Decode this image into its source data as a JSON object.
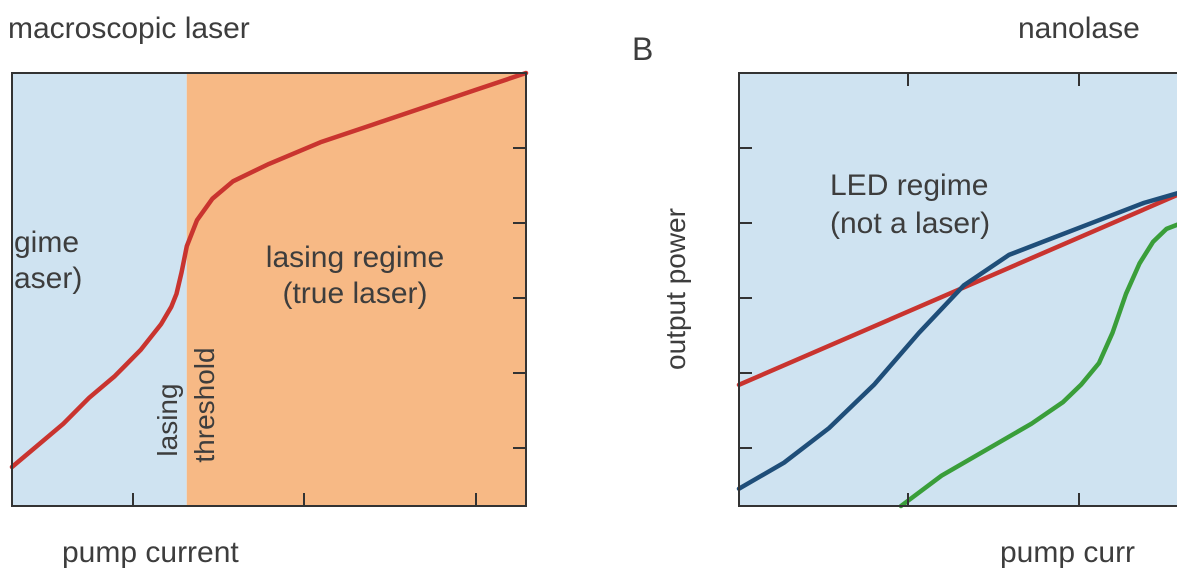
{
  "chart_data": [
    {
      "type": "line",
      "title": "macroscopic laser",
      "xlabel": "pump current",
      "ylabel": "",
      "grid": false,
      "xlim": [
        0,
        1
      ],
      "ylim": [
        0,
        1
      ],
      "regions": [
        {
          "name": "led-region",
          "label_lines": [
            "gime",
            "aser)"
          ],
          "x_range": [
            0,
            0.34
          ],
          "color": "#cfe3f1"
        },
        {
          "name": "lasing-region",
          "label_lines": [
            "lasing regime",
            "(true laser)"
          ],
          "x_range": [
            0.34,
            1
          ],
          "color": "#f7b985"
        }
      ],
      "annotations": [
        {
          "name": "lasing-threshold",
          "lines": [
            "lasing",
            "threshold"
          ],
          "x": 0.34
        }
      ],
      "series": [
        {
          "color": "#c9342f",
          "x": [
            0,
            0.05,
            0.1,
            0.15,
            0.2,
            0.25,
            0.29,
            0.31,
            0.32,
            0.33,
            0.34,
            0.36,
            0.39,
            0.43,
            0.5,
            0.6,
            0.7,
            0.8,
            0.9,
            1.0
          ],
          "y": [
            0.09,
            0.14,
            0.19,
            0.25,
            0.3,
            0.36,
            0.42,
            0.46,
            0.49,
            0.54,
            0.6,
            0.66,
            0.71,
            0.75,
            0.79,
            0.84,
            0.88,
            0.92,
            0.96,
            1.0
          ]
        }
      ]
    },
    {
      "type": "line",
      "title": "nanolase",
      "panel_letter": "B",
      "xlabel": "pump curr",
      "ylabel": "output power",
      "grid": false,
      "xlim": [
        0,
        1
      ],
      "ylim": [
        0,
        1
      ],
      "regions": [
        {
          "name": "led-regime",
          "label_lines": [
            "LED regime",
            "(not a laser)"
          ],
          "x_range": [
            0,
            1
          ],
          "color": "#cfe3f1"
        }
      ],
      "series": [
        {
          "color": "#c9342f",
          "x": [
            0,
            1
          ],
          "y": [
            0.28,
            0.73
          ]
        },
        {
          "color": "#1f4e79",
          "x": [
            0,
            0.1,
            0.2,
            0.3,
            0.4,
            0.5,
            0.6,
            0.7,
            0.8,
            0.9,
            1.0
          ],
          "y": [
            0.04,
            0.1,
            0.18,
            0.28,
            0.4,
            0.51,
            0.58,
            0.62,
            0.66,
            0.7,
            0.73
          ]
        },
        {
          "color": "#3a9e3a",
          "x": [
            0.36,
            0.45,
            0.55,
            0.65,
            0.72,
            0.76,
            0.8,
            0.83,
            0.86,
            0.89,
            0.92,
            0.95,
            1.0
          ],
          "y": [
            0.0,
            0.07,
            0.13,
            0.19,
            0.24,
            0.28,
            0.33,
            0.4,
            0.49,
            0.56,
            0.61,
            0.64,
            0.66
          ]
        }
      ]
    }
  ]
}
